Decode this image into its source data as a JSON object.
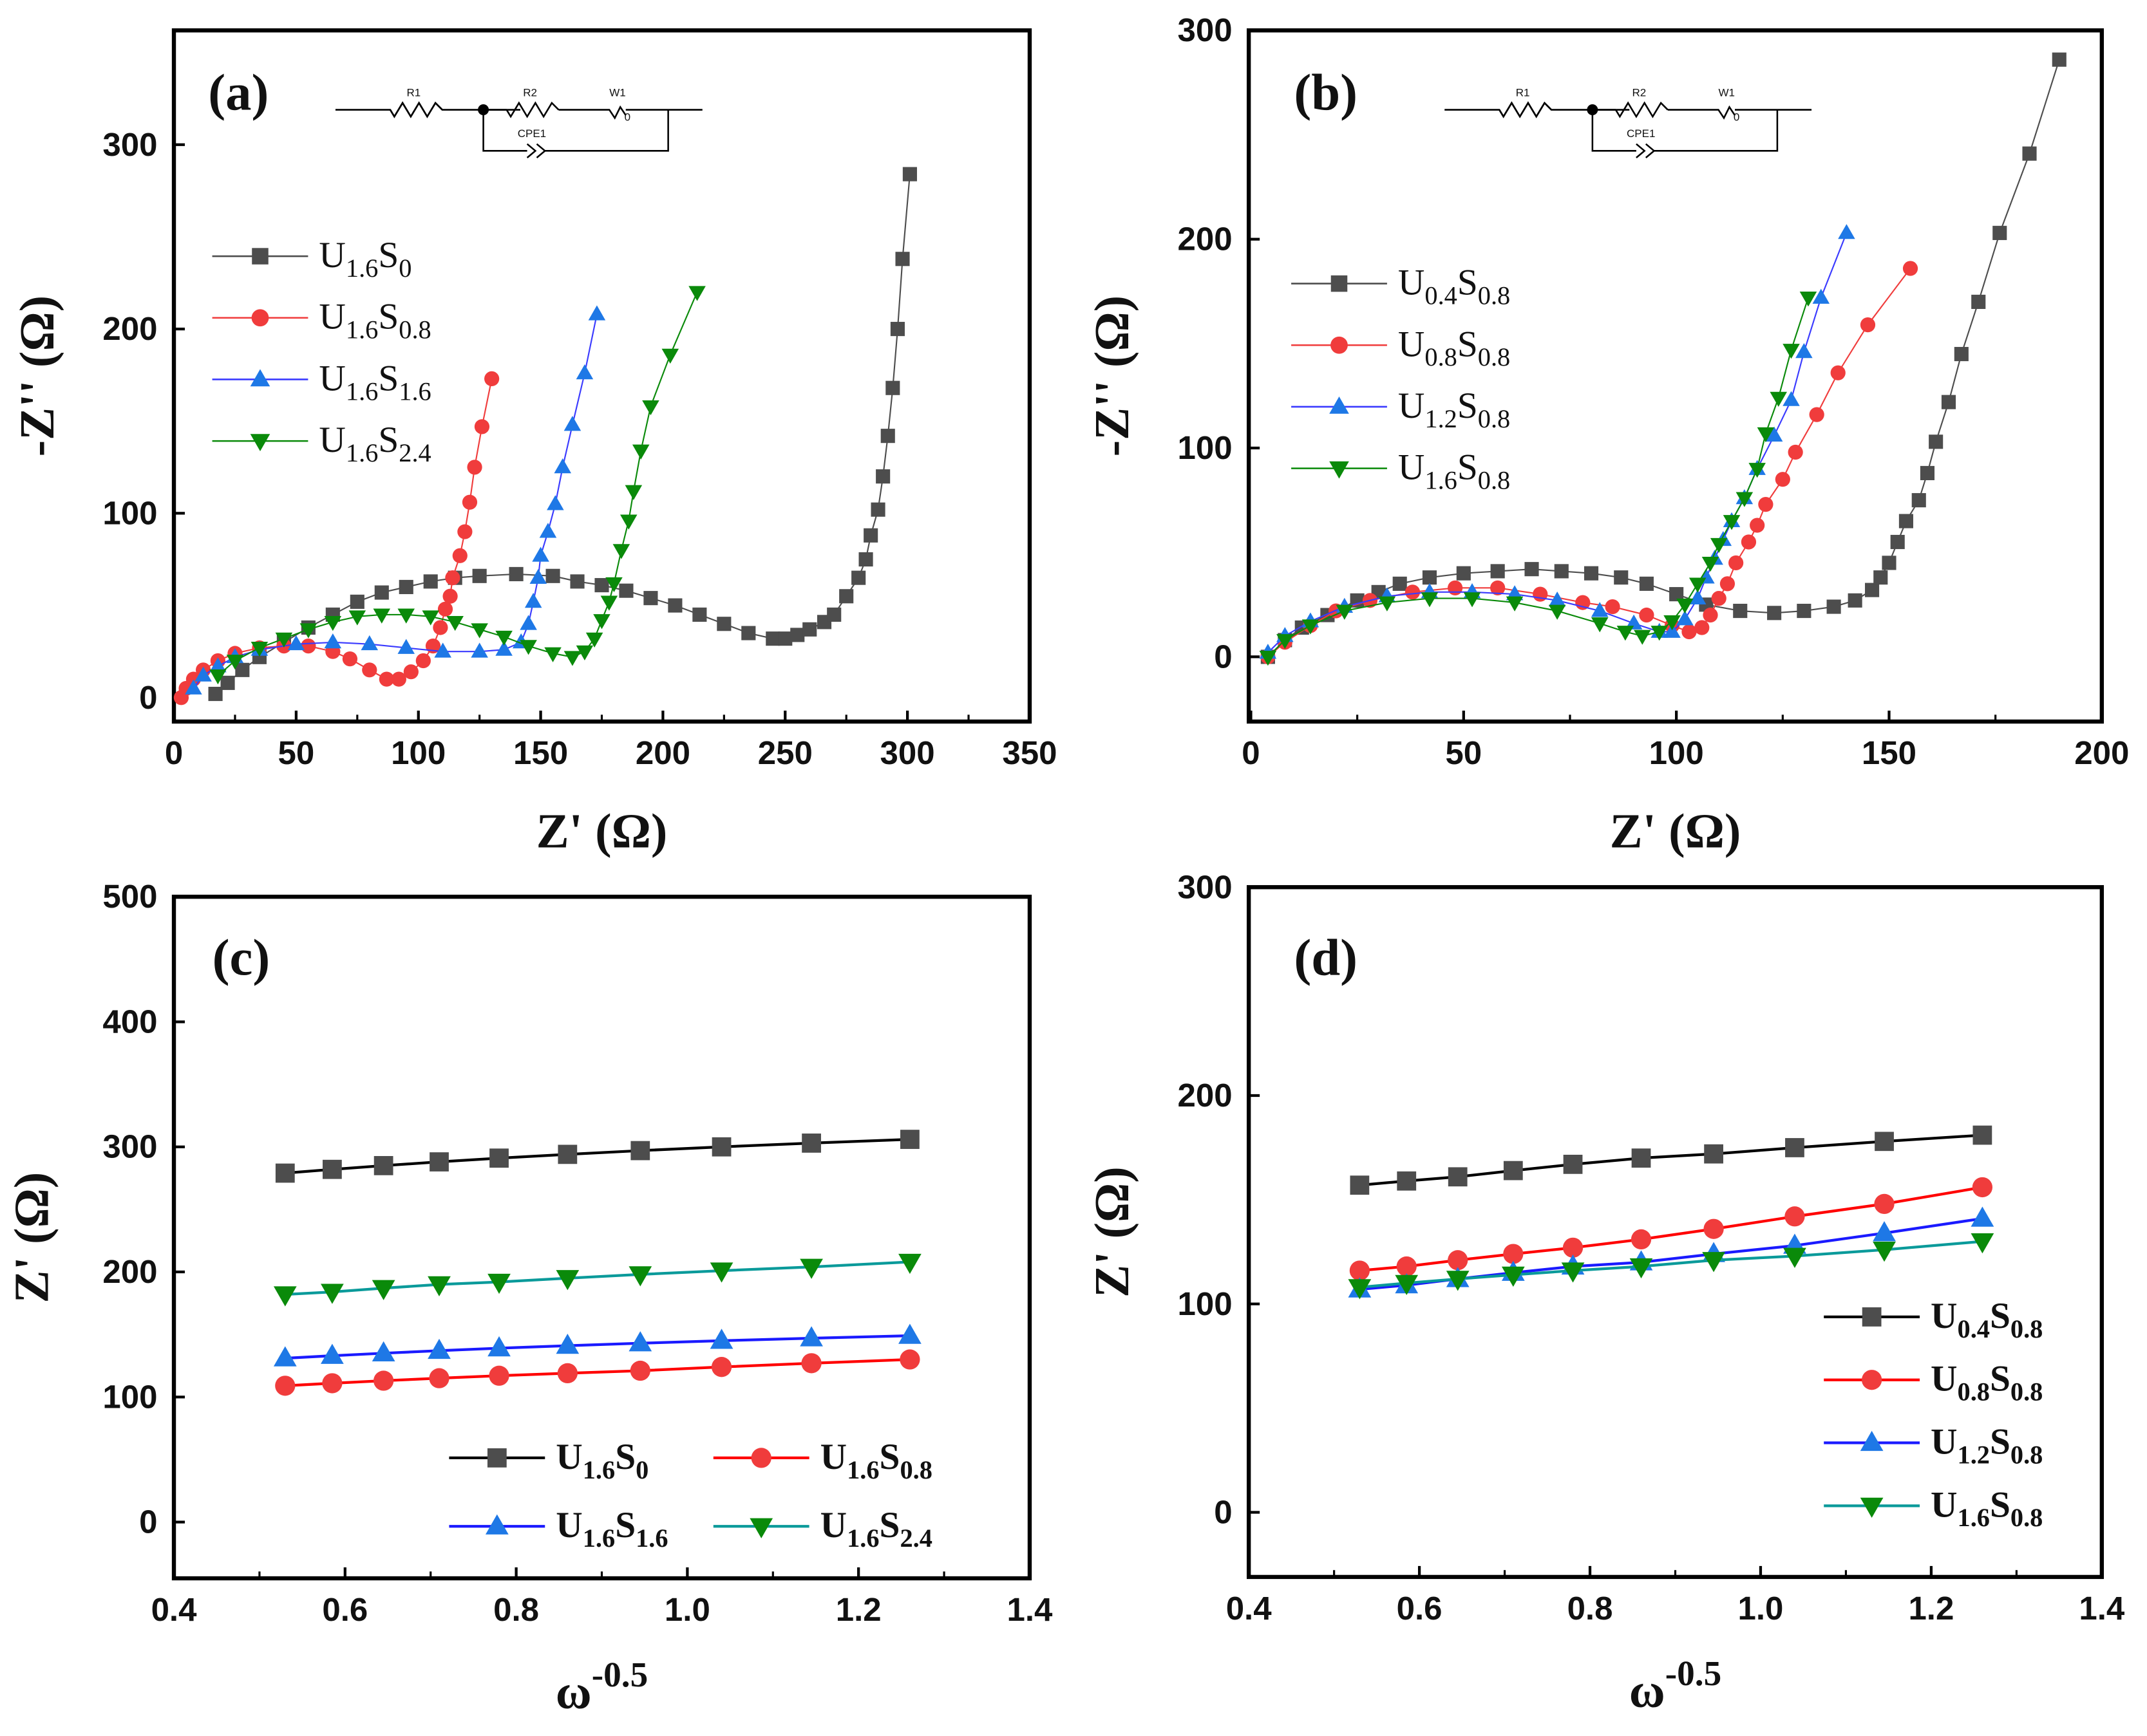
{
  "colors": {
    "gray": "#4d4d4d",
    "red": "#f03c3c",
    "blue": "#1e78e6",
    "green": "#0a8a0a",
    "black": "#000000",
    "bluel": "#1a1aff",
    "teal": "#0a9a9a"
  },
  "circuit": {
    "r1": "R1",
    "r2": "R2",
    "w1": "W1",
    "cpe": "CPE1",
    "w0": "0"
  },
  "chart_data": [
    {
      "type": "scatter",
      "panel_label": "(a)",
      "xlabel": "Z' (Ω)",
      "ylabel": "-Z'' (Ω)",
      "xlim": [
        0,
        350
      ],
      "ylim": [
        -13,
        362
      ],
      "xticks": [
        0,
        50,
        100,
        150,
        200,
        250,
        300,
        350
      ],
      "yticks": [
        0,
        100,
        200,
        300
      ],
      "legend_placement": "upper-left",
      "series": [
        {
          "name": [
            "U",
            "1.6",
            "S",
            "0"
          ],
          "marker": "square",
          "color": "#4d4d4d",
          "line": "#4d4d4d",
          "x": [
            17,
            22,
            28,
            35,
            45,
            55,
            65,
            75,
            85,
            95,
            105,
            115,
            125,
            140,
            155,
            165,
            175,
            185,
            195,
            205,
            215,
            225,
            235,
            245,
            250,
            255,
            260,
            266,
            270,
            275,
            280,
            283,
            285,
            288,
            290,
            292,
            294,
            296,
            298,
            301
          ],
          "y": [
            2,
            8,
            15,
            22,
            30,
            38,
            45,
            52,
            57,
            60,
            63,
            65,
            66,
            67,
            66,
            63,
            61,
            58,
            54,
            50,
            45,
            40,
            35,
            32,
            32,
            34,
            37,
            41,
            45,
            55,
            65,
            75,
            88,
            102,
            120,
            142,
            168,
            200,
            238,
            284
          ]
        },
        {
          "name": [
            "U",
            "1.6",
            "S",
            "0.8"
          ],
          "marker": "circle",
          "color": "#f03c3c",
          "line": "#f03c3c",
          "x": [
            3,
            5,
            8,
            12,
            18,
            25,
            35,
            45,
            55,
            65,
            72,
            80,
            87,
            92,
            97,
            102,
            106,
            109,
            111,
            113,
            114,
            117,
            119,
            121,
            123,
            126,
            130
          ],
          "y": [
            0,
            5,
            10,
            15,
            20,
            24,
            27,
            28,
            28,
            25,
            21,
            15,
            10,
            10,
            14,
            20,
            28,
            38,
            48,
            55,
            65,
            77,
            90,
            106,
            125,
            147,
            173
          ]
        },
        {
          "name": [
            "U",
            "1.6",
            "S",
            "1.6"
          ],
          "marker": "triangle-up",
          "color": "#1e78e6",
          "line": "#3a3aff",
          "x": [
            8,
            12,
            18,
            25,
            35,
            50,
            65,
            80,
            95,
            110,
            125,
            135,
            142,
            145,
            147,
            149,
            150,
            153,
            156,
            159,
            163,
            168,
            173
          ],
          "y": [
            5,
            12,
            17,
            22,
            26,
            29,
            30,
            29,
            27,
            25,
            25,
            26,
            30,
            40,
            52,
            65,
            77,
            90,
            105,
            125,
            148,
            176,
            208
          ]
        },
        {
          "name": [
            "U",
            "1.6",
            "S",
            "2.4"
          ],
          "marker": "triangle-down",
          "color": "#0a8a0a",
          "line": "#0a8a0a",
          "x": [
            18,
            25,
            35,
            45,
            55,
            65,
            75,
            85,
            95,
            105,
            115,
            125,
            135,
            145,
            155,
            163,
            168,
            172,
            175,
            178,
            180,
            183,
            186,
            188,
            191,
            195,
            203,
            214
          ],
          "y": [
            12,
            20,
            27,
            32,
            37,
            41,
            44,
            45,
            45,
            44,
            41,
            37,
            33,
            28,
            24,
            22,
            25,
            32,
            42,
            52,
            62,
            80,
            96,
            112,
            134,
            158,
            186,
            220
          ]
        }
      ]
    },
    {
      "type": "scatter",
      "panel_label": "(b)",
      "xlabel": "Z' (Ω)",
      "ylabel": "-Z'' (Ω)",
      "xlim": [
        -0.5,
        200
      ],
      "ylim": [
        -31,
        300
      ],
      "xticks": [
        0,
        50,
        100,
        150,
        200
      ],
      "yticks": [
        0,
        100,
        200,
        300
      ],
      "legend_placement": "upper-left",
      "series": [
        {
          "name": [
            "U",
            "0.4",
            "S",
            "0.8"
          ],
          "marker": "square",
          "color": "#4d4d4d",
          "line": "#4d4d4d",
          "x": [
            4,
            8,
            12,
            18,
            25,
            30,
            35,
            42,
            50,
            58,
            66,
            73,
            80,
            87,
            93,
            100,
            107,
            115,
            123,
            130,
            137,
            142,
            146,
            148,
            150,
            152,
            154,
            157,
            159,
            161,
            164,
            167,
            171,
            176,
            183,
            190
          ],
          "y": [
            0,
            8,
            14,
            20,
            27,
            31,
            35,
            38,
            40,
            41,
            42,
            41,
            40,
            38,
            35,
            30,
            25,
            22,
            21,
            22,
            24,
            27,
            32,
            38,
            45,
            55,
            65,
            75,
            88,
            103,
            122,
            145,
            170,
            203,
            241,
            286
          ]
        },
        {
          "name": [
            "U",
            "0.8",
            "S",
            "0.8"
          ],
          "marker": "circle",
          "color": "#f03c3c",
          "line": "#f03c3c",
          "x": [
            4,
            8,
            14,
            20,
            28,
            38,
            48,
            58,
            68,
            78,
            85,
            93,
            99,
            103,
            106,
            108,
            110,
            112,
            114,
            117,
            119,
            121,
            125,
            128,
            133,
            138,
            145,
            155
          ],
          "y": [
            0,
            7,
            15,
            22,
            27,
            31,
            33,
            33,
            30,
            26,
            24,
            20,
            15,
            12,
            14,
            20,
            28,
            35,
            45,
            55,
            63,
            73,
            85,
            98,
            116,
            136,
            159,
            186
          ]
        },
        {
          "name": [
            "U",
            "1.2",
            "S",
            "0.8"
          ],
          "marker": "triangle-up",
          "color": "#1e78e6",
          "line": "#3a3aff",
          "x": [
            4,
            8,
            14,
            22,
            32,
            42,
            52,
            62,
            72,
            82,
            90,
            96,
            99,
            102,
            105,
            107,
            109,
            111,
            113,
            116,
            119,
            123,
            127,
            130,
            134,
            140
          ],
          "y": [
            2,
            10,
            17,
            24,
            29,
            31,
            31,
            30,
            27,
            22,
            16,
            12,
            12,
            18,
            28,
            38,
            47,
            56,
            65,
            76,
            90,
            106,
            123,
            146,
            172,
            203
          ]
        },
        {
          "name": [
            "U",
            "1.6",
            "S",
            "0.8"
          ],
          "marker": "triangle-down",
          "color": "#0a8a0a",
          "line": "#0a8a0a",
          "x": [
            4,
            8,
            14,
            22,
            32,
            42,
            52,
            62,
            72,
            82,
            88,
            92,
            96,
            99,
            102,
            105,
            108,
            110,
            113,
            116,
            119,
            121,
            124,
            127,
            131
          ],
          "y": [
            0,
            8,
            15,
            22,
            26,
            28,
            28,
            26,
            22,
            16,
            12,
            10,
            12,
            17,
            25,
            35,
            45,
            54,
            65,
            76,
            90,
            107,
            124,
            147,
            172
          ]
        }
      ]
    },
    {
      "type": "line",
      "panel_label": "(c)",
      "xlabel": "ω",
      "xlabel_sup": "-0.5",
      "ylabel": "Z' (Ω)",
      "xlim": [
        0.4,
        1.4
      ],
      "ylim": [
        -45,
        500
      ],
      "xticks": [
        0.4,
        0.6,
        0.8,
        1.0,
        1.2,
        1.4
      ],
      "yticks": [
        0,
        100,
        200,
        300,
        400,
        500
      ],
      "legend_placement": "lower-right",
      "x": [
        0.53,
        0.585,
        0.645,
        0.71,
        0.78,
        0.86,
        0.945,
        1.04,
        1.145,
        1.26
      ],
      "series": [
        {
          "name": [
            "U",
            "1.6",
            "S",
            "0"
          ],
          "marker": "square",
          "color": "#4d4d4d",
          "line": "#000000",
          "y": [
            279,
            282,
            285,
            288,
            291,
            294,
            297,
            300,
            303,
            306
          ]
        },
        {
          "name": [
            "U",
            "1.6",
            "S",
            "0.8"
          ],
          "marker": "circle",
          "color": "#f03c3c",
          "line": "#ff0000",
          "y": [
            109,
            111,
            113,
            115,
            117,
            119,
            121,
            124,
            127,
            130
          ]
        },
        {
          "name": [
            "U",
            "1.6",
            "S",
            "1.6"
          ],
          "marker": "triangle-up",
          "color": "#1e78e6",
          "line": "#1a1aff",
          "y": [
            131,
            133,
            135,
            137,
            139,
            141,
            143,
            145,
            147,
            149
          ]
        },
        {
          "name": [
            "U",
            "1.6",
            "S",
            "2.4"
          ],
          "marker": "triangle-down",
          "color": "#0a8a0a",
          "line": "#0a9a9a",
          "y": [
            182,
            184,
            187,
            190,
            192,
            195,
            198,
            201,
            204,
            208
          ]
        }
      ]
    },
    {
      "type": "line",
      "panel_label": "(d)",
      "xlabel": "ω",
      "xlabel_sup": "-0.5",
      "ylabel": "Z' (Ω)",
      "xlim": [
        0.4,
        1.4
      ],
      "ylim": [
        -31,
        300
      ],
      "xticks": [
        0.4,
        0.6,
        0.8,
        1.0,
        1.2,
        1.4
      ],
      "yticks": [
        0,
        100,
        200,
        300
      ],
      "legend_placement": "lower-right",
      "x": [
        0.53,
        0.585,
        0.645,
        0.71,
        0.78,
        0.86,
        0.945,
        1.04,
        1.145,
        1.26
      ],
      "series": [
        {
          "name": [
            "U",
            "0.4",
            "S",
            "0.8"
          ],
          "marker": "square",
          "color": "#4d4d4d",
          "line": "#000000",
          "y": [
            157,
            159,
            161,
            164,
            167,
            170,
            172,
            175,
            178,
            181
          ]
        },
        {
          "name": [
            "U",
            "0.8",
            "S",
            "0.8"
          ],
          "marker": "circle",
          "color": "#f03c3c",
          "line": "#ff0000",
          "y": [
            116,
            118,
            121,
            124,
            127,
            131,
            136,
            142,
            148,
            156
          ]
        },
        {
          "name": [
            "U",
            "1.2",
            "S",
            "0.8"
          ],
          "marker": "triangle-up",
          "color": "#1e78e6",
          "line": "#1a1aff",
          "y": [
            107,
            109,
            112,
            115,
            118,
            120,
            124,
            128,
            134,
            141
          ]
        },
        {
          "name": [
            "U",
            "1.6",
            "S",
            "0.8"
          ],
          "marker": "triangle-down",
          "color": "#0a8a0a",
          "line": "#0a9a9a",
          "y": [
            108,
            110,
            112,
            114,
            116,
            118,
            121,
            123,
            126,
            130
          ]
        }
      ]
    }
  ]
}
